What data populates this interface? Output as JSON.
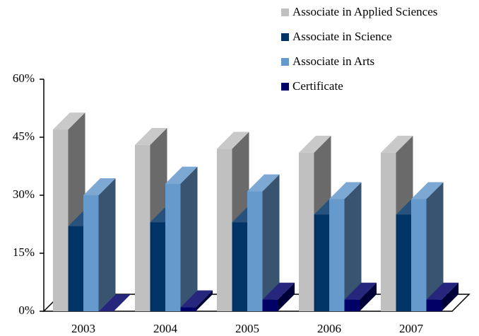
{
  "chart_data": {
    "type": "bar3d",
    "categories": [
      "2003",
      "2004",
      "2005",
      "2006",
      "2007"
    ],
    "series": [
      {
        "name": "Associate in Applied Sciences",
        "color": "#c0c0c0",
        "values": [
          47,
          43,
          42,
          41,
          41
        ]
      },
      {
        "name": "Associate in Science",
        "color": "#003366",
        "values": [
          22,
          23,
          23,
          25,
          25
        ]
      },
      {
        "name": "Associate in Arts",
        "color": "#6699cc",
        "values": [
          30,
          33,
          31,
          29,
          29
        ]
      },
      {
        "name": "Certificate",
        "color": "#000066",
        "values": [
          0,
          1,
          3,
          3,
          3
        ]
      }
    ],
    "ylim": [
      0,
      60
    ],
    "yticks": [
      {
        "value": 0,
        "label": "0%"
      },
      {
        "value": 15,
        "label": "15%"
      },
      {
        "value": 30,
        "label": "30%"
      },
      {
        "value": 45,
        "label": "45%"
      },
      {
        "value": 60,
        "label": "60%"
      }
    ],
    "legend": "top-right"
  }
}
